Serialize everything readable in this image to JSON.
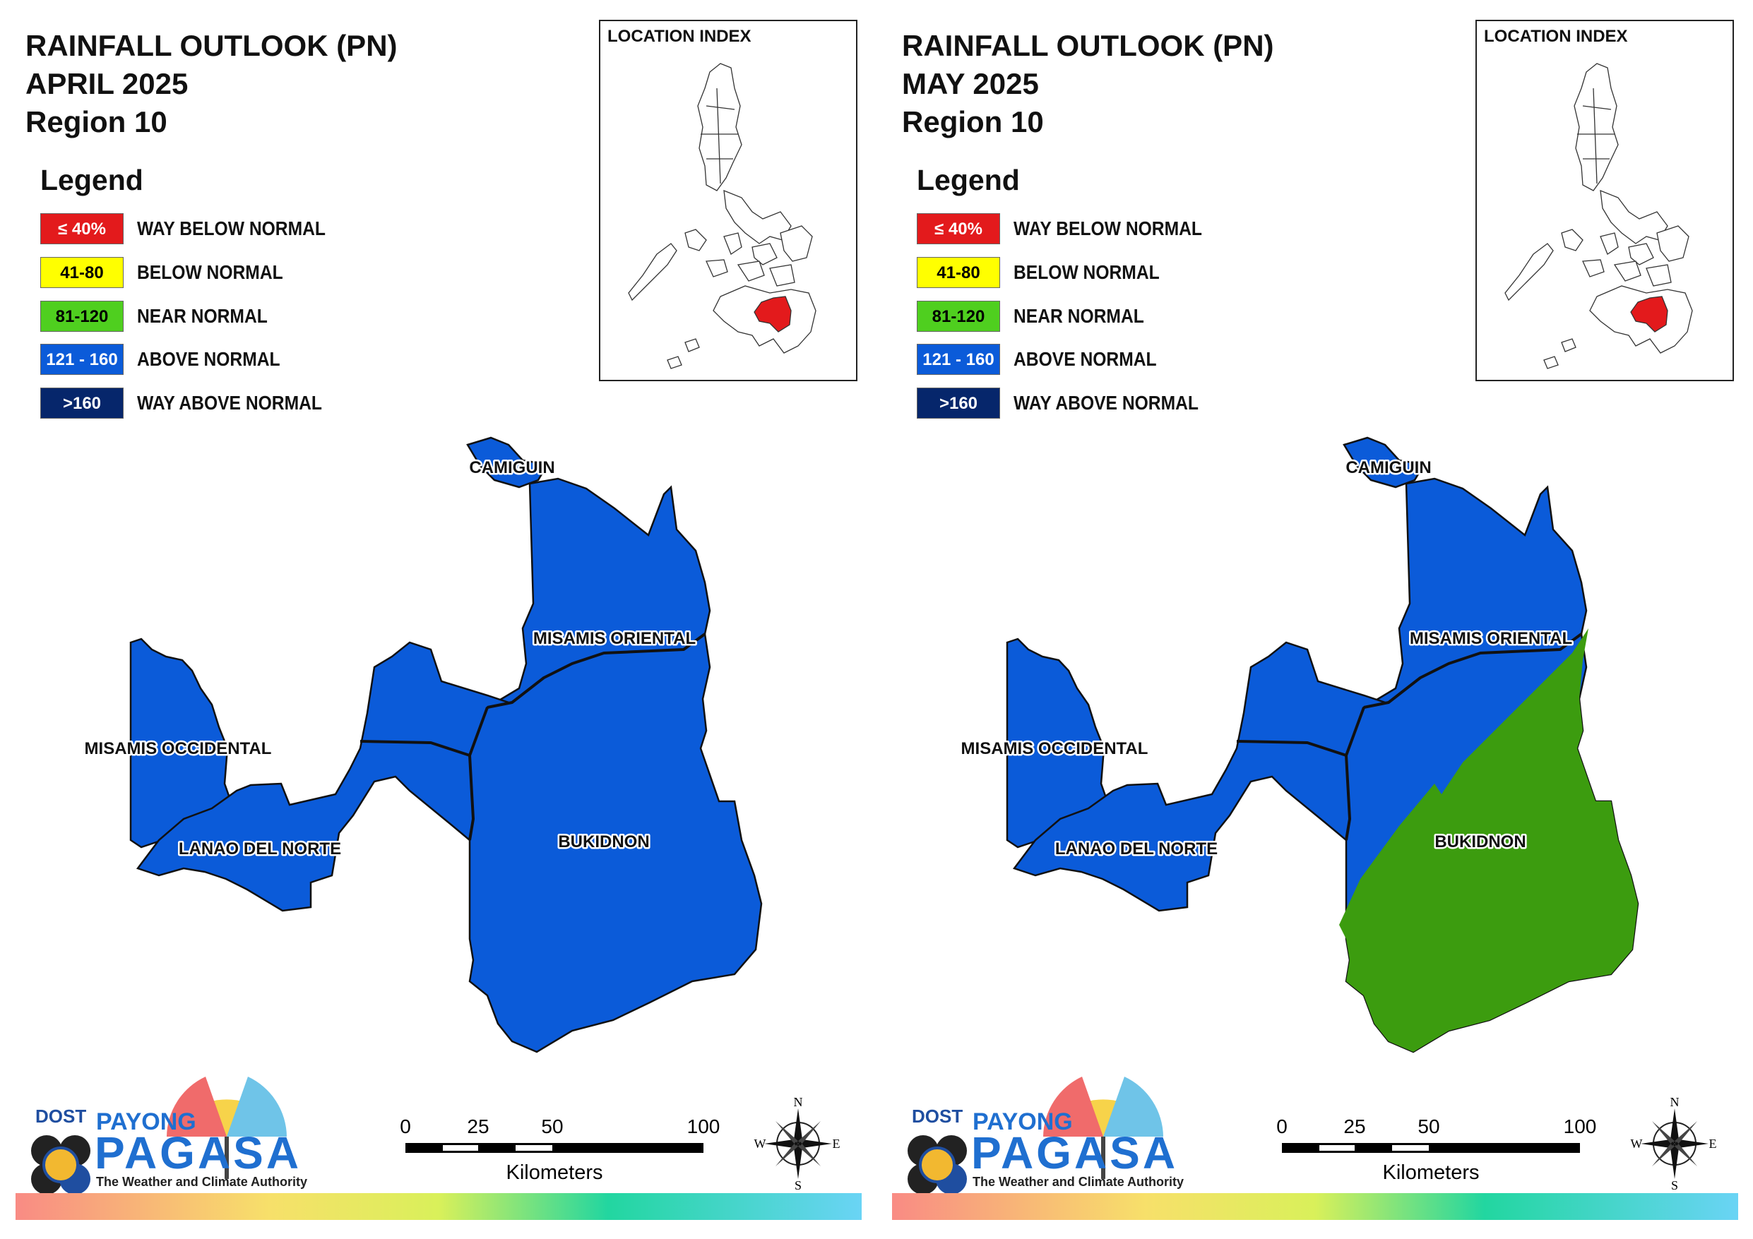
{
  "panels": [
    {
      "title_lines": [
        "RAINFALL OUTLOOK (PN)",
        "APRIL 2025",
        "Region 10"
      ],
      "bukidnon_split": false
    },
    {
      "title_lines": [
        "RAINFALL OUTLOOK (PN)",
        "MAY 2025",
        "Region 10"
      ],
      "bukidnon_split": true
    }
  ],
  "legend": {
    "heading": "Legend",
    "items": [
      {
        "range": "≤ 40%",
        "label": "WAY BELOW NORMAL",
        "color": "#e31a1c",
        "text_color": "#ffffff"
      },
      {
        "range": "41-80",
        "label": "BELOW NORMAL",
        "color": "#ffff00",
        "text_color": "#000000"
      },
      {
        "range": "81-120",
        "label": "NEAR NORMAL",
        "color": "#4fcf1f",
        "text_color": "#000000"
      },
      {
        "range": "121 - 160",
        "label": "ABOVE NORMAL",
        "color": "#0b5bd9",
        "text_color": "#ffffff"
      },
      {
        "range": ">160",
        "label": "WAY ABOVE NORMAL",
        "color": "#06266b",
        "text_color": "#ffffff"
      }
    ]
  },
  "location_index": {
    "title": "LOCATION INDEX",
    "highlight_color": "#e31a1c"
  },
  "provinces": {
    "camiguin": "CAMIGUIN",
    "misamis_oriental": "MISAMIS ORIENTAL",
    "misamis_occidental": "MISAMIS OCCIDENTAL",
    "lanao_del_norte": "LANAO DEL NORTE",
    "bukidnon": "BUKIDNON"
  },
  "map_colors": {
    "above_normal": "#0b5bd9",
    "near_normal": "#3c9c0f"
  },
  "scale": {
    "ticks": [
      "0",
      "25",
      "50",
      "100"
    ],
    "unit": "Kilometers"
  },
  "compass": {
    "n": "N",
    "s": "S",
    "e": "E",
    "w": "W"
  },
  "logo": {
    "dost": "DOST",
    "payong": "PAYONG",
    "pagasa": "PAGASA",
    "tagline": "The Weather and Climate Authority"
  }
}
